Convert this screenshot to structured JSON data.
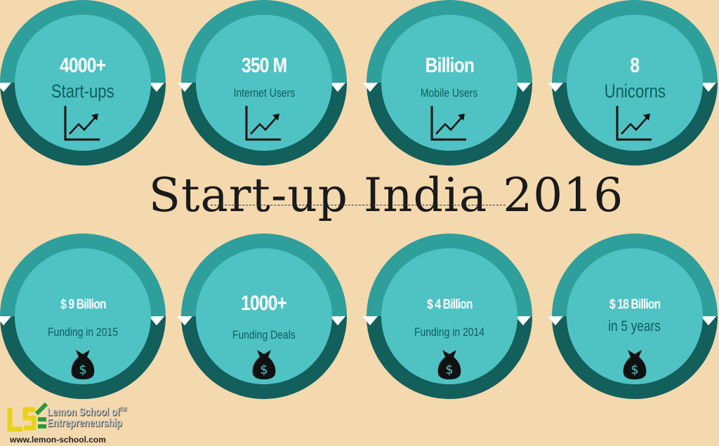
{
  "title": "Start-up India 2016",
  "top_row": [
    {
      "value": "4000+",
      "label": "Start-ups",
      "icon": "growth-chart-icon"
    },
    {
      "value": "350 M",
      "label": "Internet Users",
      "icon": "growth-chart-icon"
    },
    {
      "value": "Billion",
      "label": "Mobile Users",
      "icon": "growth-chart-icon"
    },
    {
      "value": "8",
      "label": "Unicorns",
      "icon": "growth-chart-icon"
    }
  ],
  "bottom_row": [
    {
      "value": "$ 9 Billion",
      "label": "Funding in 2015",
      "icon": "money-bag-icon"
    },
    {
      "value": "1000+",
      "label": "Funding Deals",
      "icon": "money-bag-icon"
    },
    {
      "value": "$ 4 Billion",
      "label": "Funding in 2014",
      "icon": "money-bag-icon"
    },
    {
      "value": "$ 18 Billion",
      "label": "in 5 years",
      "icon": "money-bag-icon"
    }
  ],
  "logo": {
    "mark": "LSE",
    "name_line1": "Lemon School of",
    "name_line2": "Entrepreneurship",
    "tm": "TM",
    "url": "www.lemon-school.com"
  },
  "colors": {
    "background": "#f4d9ae",
    "ring_top": "#2f9f9c",
    "ring_bottom": "#135f5b",
    "inner": "#4fc2c4",
    "label": "#0f5e5b"
  }
}
